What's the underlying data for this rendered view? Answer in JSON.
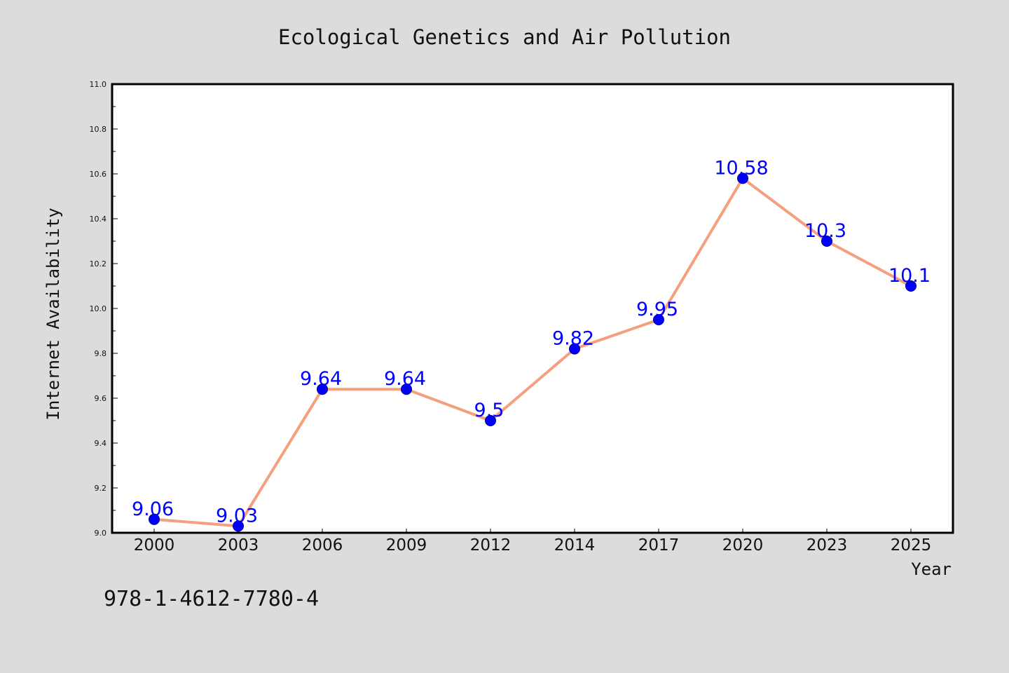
{
  "chart_data": {
    "type": "line",
    "title": "Ecological Genetics and Air Pollution",
    "xlabel": "Year",
    "ylabel": "Internet Availability",
    "categories": [
      "2000",
      "2003",
      "2006",
      "2009",
      "2012",
      "2014",
      "2017",
      "2020",
      "2023",
      "2025"
    ],
    "series": [
      {
        "values": [
          9.06,
          9.03,
          9.64,
          9.64,
          9.5,
          9.82,
          9.95,
          10.58,
          10.3,
          10.1
        ],
        "data_labels": [
          "9.06",
          "9.03",
          "9.64",
          "9.64",
          "9.5",
          "9.82",
          "9.95",
          "10.58",
          "10.3",
          "10.1"
        ],
        "line_color": "#f4a07f",
        "marker_color": "#0000ff"
      }
    ],
    "ylim": [
      9.0,
      11.0
    ],
    "yticks": [
      "9.0",
      "9.2",
      "9.4",
      "9.6",
      "9.8",
      "10.0",
      "10.2",
      "10.4",
      "10.6",
      "10.8",
      "11.0"
    ],
    "grid": false,
    "background_color": "#dcdcdc",
    "plot_background_color": "#ffffff",
    "label_color": "#0000ff"
  },
  "footer": {
    "isbn": "978-1-4612-7780-4"
  }
}
